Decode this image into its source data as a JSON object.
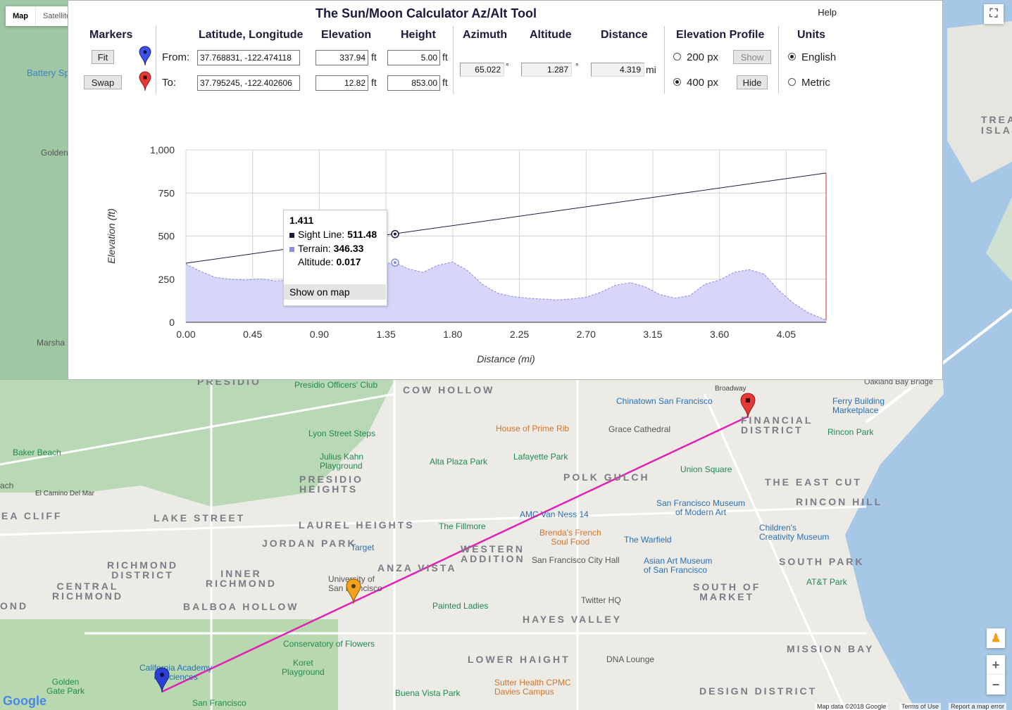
{
  "map": {
    "type_buttons": [
      "Map",
      "Satellite"
    ],
    "attribution": "Map data ©2018 Google",
    "terms": "Terms of Use",
    "report": "Report a map error",
    "google_logo": "Google",
    "zoom_in": "+",
    "zoom_out": "−",
    "labels": {
      "battery": "Battery Sp",
      "golden": "Golden",
      "marsha": "Marsha",
      "presidio": "PRESIDIO",
      "presidio_officers": "Presidio Officers' Club",
      "cow_hollow": "COW HOLLOW",
      "chinatown": "Chinatown San Francisco",
      "ferry": "Ferry Building\nMarketplace",
      "oakland_bay": "Oakland Bay Bridge",
      "broadway": "Broadway",
      "financial": "FINANCIAL\nDISTRICT",
      "rincon_park": "Rincon Park",
      "house_prime": "House of Prime Rib",
      "grace": "Grace Cathedral",
      "lyon": "Lyon Street Steps",
      "baker": "Baker Beach",
      "julius": "Julius Kahn\nPlayground",
      "alta": "Alta Plaza Park",
      "lafayette": "Lafayette Park",
      "union_sq": "Union Square",
      "east_cut": "THE EAST CUT",
      "presidio_heights": "PRESIDIO\nHEIGHTS",
      "polk_gulch": "POLK GULCH",
      "rincon_hill": "RINCON HILL",
      "sfmoma": "San Francisco Museum\nof Modern Art",
      "el_camino": "El Camino Del Mar",
      "sea_cliff": "EA CLIFF",
      "lake_street": "LAKE STREET",
      "laurel": "LAUREL HEIGHTS",
      "amc": "AMC Van Ness 14",
      "fillmore": "The Fillmore",
      "childrens": "Children's\nCreativity Museum",
      "jordan": "JORDAN PARK",
      "target": "Target",
      "western": "WESTERN\nADDITION",
      "brendas": "Brenda's French\nSoul Food",
      "warfield": "The Warfield",
      "richmond": "RICHMOND\nDISTRICT",
      "inner_richmond": "INNER\nRICHMOND",
      "anza": "ANZA VISTA",
      "city_hall": "San Francisco City Hall",
      "asian_art": "Asian Art Museum\nof San Francisco",
      "south_park": "SOUTH PARK",
      "central_richmond": "CENTRAL\nRICHMOND",
      "usf": "University of\nSan Francisco",
      "south_market": "SOUTH OF\nMARKET",
      "att": "AT&T Park",
      "balboa": "BALBOA HOLLOW",
      "painted": "Painted Ladies",
      "twitter": "Twitter HQ",
      "hayes": "HAYES VALLEY",
      "conservatory": "Conservatory of Flowers",
      "mission_bay": "MISSION BAY",
      "cal_academy": "California Academy\nof Sciences",
      "koret": "Koret\nPlayground",
      "lower_haight": "LOWER HAIGHT",
      "dna": "DNA Lounge",
      "golden_gate_park": "Golden\nGate Park",
      "sutter": "Sutter Health CPMC\nDavies Campus",
      "buena": "Buena Vista Park",
      "sf_bottom": "San Francisco",
      "design": "DESIGN DISTRICT",
      "treasure": "TREA\nISLA",
      "ond": "OND",
      "ach": "ach"
    }
  },
  "panel": {
    "title": "The Sun/Moon Calculator Az/Alt Tool",
    "help": "Help",
    "headers": {
      "markers": "Markers",
      "latlon": "Latitude, Longitude",
      "elevation": "Elevation",
      "height": "Height",
      "azimuth": "Azimuth",
      "altitude": "Altitude",
      "distance": "Distance",
      "profile": "Elevation Profile",
      "units": "Units"
    },
    "fit_button": "Fit",
    "swap_button": "Swap",
    "from_label": "From:",
    "to_label": "To:",
    "from": {
      "latlon": "37.768831, -122.474118",
      "elevation": "337.94",
      "height": "5.00"
    },
    "to": {
      "latlon": "37.795245, -122.402606",
      "elevation": "12.82",
      "height": "853.00"
    },
    "unit_ft": "ft",
    "results": {
      "azimuth": "65.022",
      "altitude": "1.287",
      "distance": "4.319",
      "deg": "°",
      "dist_unit": "mi"
    },
    "profile_options": [
      {
        "label": "200 px",
        "selected": false,
        "button": "Show"
      },
      {
        "label": "400 px",
        "selected": true,
        "button": "Hide"
      }
    ],
    "unit_options": [
      {
        "label": "English",
        "selected": true
      },
      {
        "label": "Metric",
        "selected": false
      }
    ]
  },
  "chart_data": {
    "type": "area",
    "title": "",
    "xlabel": "Distance (mi)",
    "ylabel": "Elevation (ft)",
    "xlim": [
      0,
      4.319
    ],
    "ylim": [
      0,
      1000
    ],
    "x_ticks": [
      "0.00",
      "0.45",
      "0.90",
      "1.35",
      "1.80",
      "2.25",
      "2.70",
      "3.15",
      "3.60",
      "4.05"
    ],
    "y_ticks": [
      "0",
      "250",
      "500",
      "750",
      "1,000"
    ],
    "grid": true,
    "series": [
      {
        "name": "Sight Line",
        "color": "#1a1a3e",
        "type": "line",
        "x": [
          0,
          4.319
        ],
        "y": [
          342.94,
          865.82
        ]
      },
      {
        "name": "Terrain",
        "color": "#8a8aee",
        "type": "area",
        "x": [
          0,
          0.1,
          0.2,
          0.3,
          0.4,
          0.5,
          0.6,
          0.7,
          0.8,
          0.9,
          1.0,
          1.1,
          1.2,
          1.3,
          1.411,
          1.5,
          1.6,
          1.7,
          1.8,
          1.9,
          2.0,
          2.1,
          2.2,
          2.3,
          2.4,
          2.5,
          2.6,
          2.7,
          2.8,
          2.9,
          3.0,
          3.1,
          3.2,
          3.3,
          3.4,
          3.5,
          3.6,
          3.7,
          3.8,
          3.9,
          4.0,
          4.1,
          4.2,
          4.319
        ],
        "y": [
          338,
          295,
          260,
          250,
          245,
          252,
          240,
          245,
          255,
          268,
          262,
          300,
          320,
          335,
          346.33,
          310,
          290,
          330,
          350,
          300,
          220,
          170,
          150,
          140,
          135,
          130,
          135,
          145,
          175,
          215,
          230,
          205,
          160,
          140,
          155,
          220,
          245,
          290,
          305,
          280,
          185,
          110,
          55,
          12.82
        ]
      }
    ],
    "tooltip": {
      "x": "1.411",
      "sight_label": "Sight Line:",
      "sight_value": "511.48",
      "terrain_label": "Terrain:",
      "terrain_value": "346.33",
      "altitude_label": "Altitude:",
      "altitude_value": "0.017",
      "action": "Show on map"
    }
  }
}
